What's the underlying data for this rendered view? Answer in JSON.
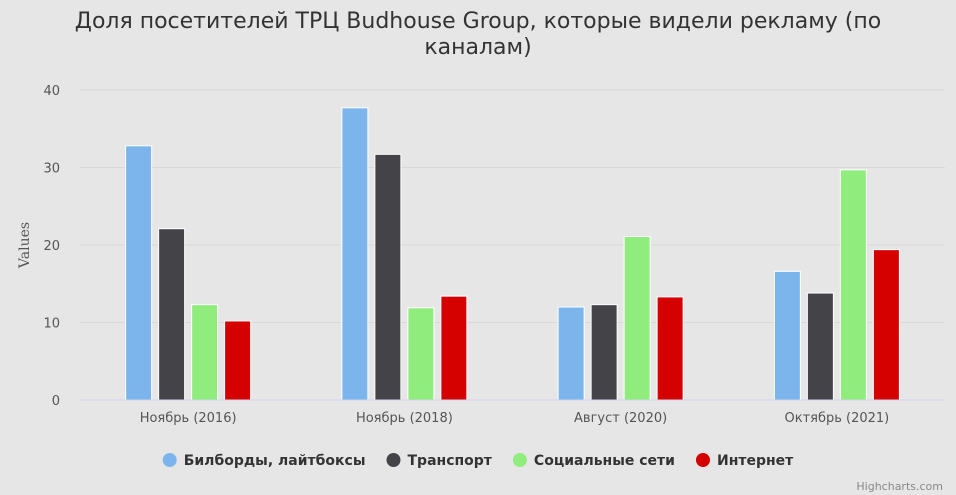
{
  "chart_data": {
    "type": "bar",
    "title_line1": "Доля посетителей ТРЦ Budhouse Group, которые видели рекламу (по",
    "title_line2": "каналам)",
    "ylabel": "Values",
    "categories": [
      "Ноябрь (2016)",
      "Ноябрь (2018)",
      "Август (2020)",
      "Октябрь (2021)"
    ],
    "ylim": [
      0,
      40
    ],
    "yticks": [
      0,
      10,
      20,
      30,
      40
    ],
    "series": [
      {
        "name": "Билборды, лайтбоксы",
        "color": "#7cb5ec",
        "values": [
          32.8,
          37.7,
          12.0,
          16.6
        ]
      },
      {
        "name": "Транспорт",
        "color": "#434348",
        "values": [
          22.1,
          31.7,
          12.3,
          13.8
        ]
      },
      {
        "name": "Социальные сети",
        "color": "#90ed7d",
        "values": [
          12.3,
          11.9,
          21.1,
          29.7
        ]
      },
      {
        "name": "Интернет",
        "color": "#d50000",
        "values": [
          10.2,
          13.4,
          13.3,
          19.4
        ]
      }
    ],
    "legend_position": "bottom",
    "credits": "Highcharts.com"
  }
}
